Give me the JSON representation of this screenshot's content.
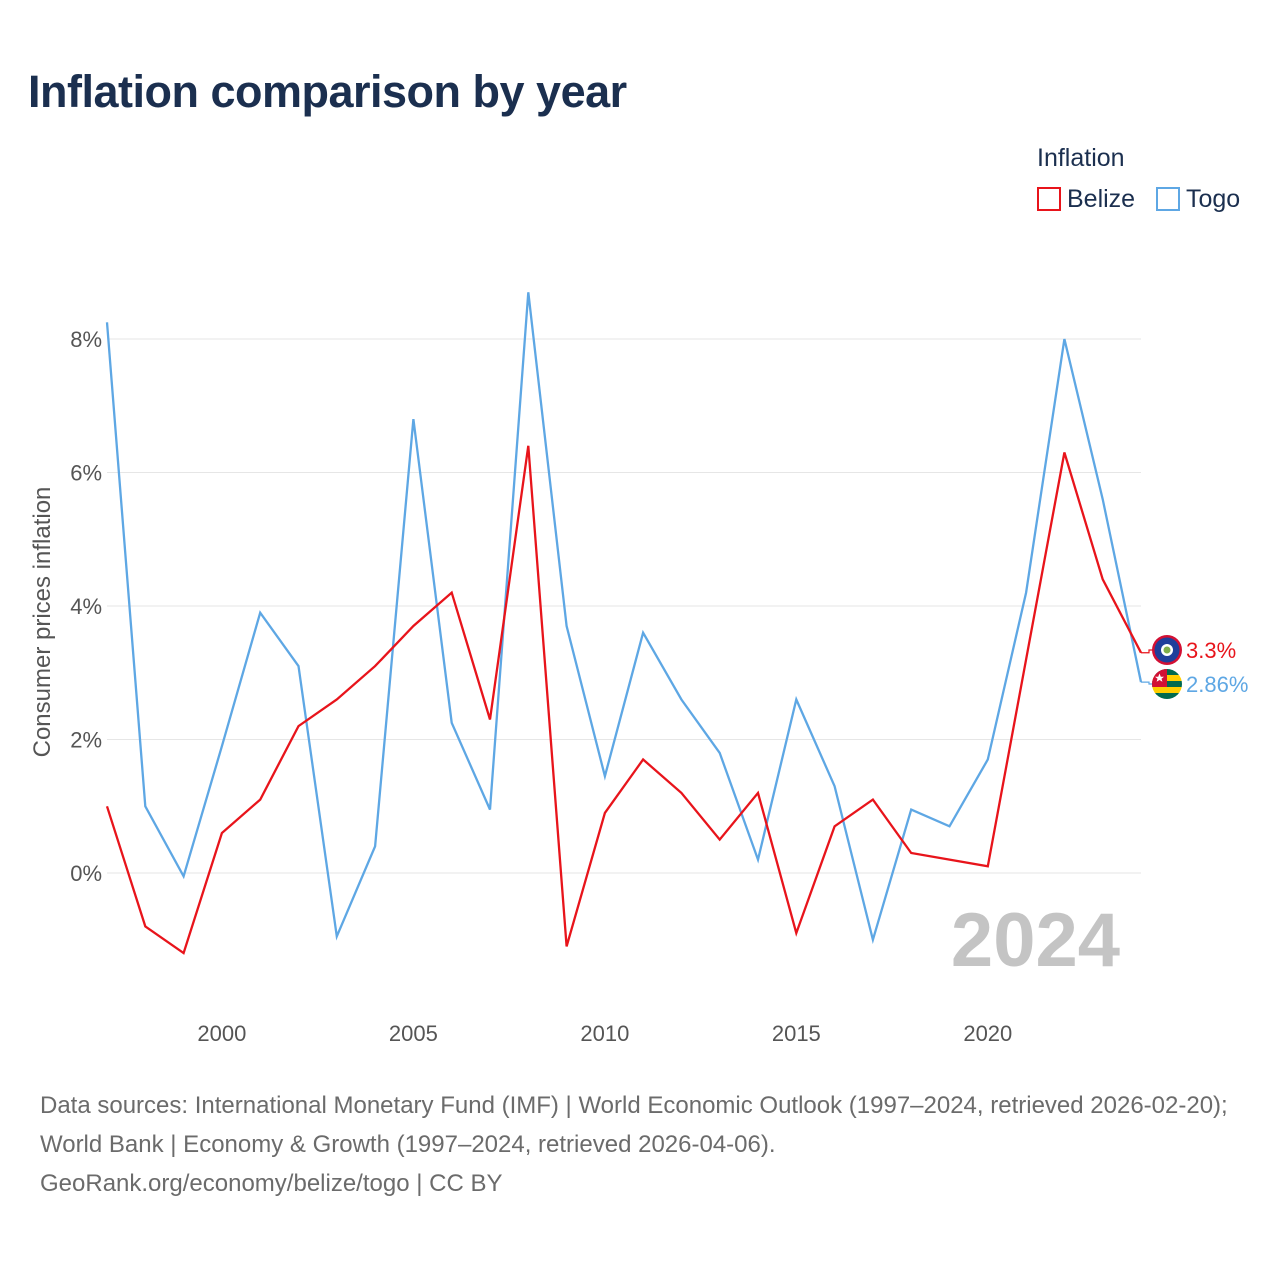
{
  "title": "Inflation comparison by year",
  "legend": {
    "title": "Inflation",
    "items": [
      {
        "label": "Belize",
        "color": "#e8141b"
      },
      {
        "label": "Togo",
        "color": "#5ea7e4"
      }
    ]
  },
  "chart_data": {
    "type": "line",
    "title": "Inflation comparison by year",
    "xlabel": "",
    "ylabel": "Consumer prices inflation",
    "x": [
      1997,
      1998,
      1999,
      2000,
      2001,
      2002,
      2003,
      2004,
      2005,
      2006,
      2007,
      2008,
      2009,
      2010,
      2011,
      2012,
      2013,
      2014,
      2015,
      2016,
      2017,
      2018,
      2019,
      2020,
      2021,
      2022,
      2023,
      2024
    ],
    "xlim": [
      1997,
      2024
    ],
    "ylim": [
      -2,
      9
    ],
    "x_ticks": [
      2000,
      2005,
      2010,
      2015,
      2020
    ],
    "y_ticks": [
      0,
      2,
      4,
      6,
      8
    ],
    "y_tick_labels": [
      "0%",
      "2%",
      "4%",
      "6%",
      "8%"
    ],
    "x_tick_labels": [
      "2000",
      "2005",
      "2010",
      "2015",
      "2020"
    ],
    "grid": true,
    "legend_position": "top-right",
    "year_watermark": "2024",
    "series": [
      {
        "name": "Belize",
        "color": "#e8141b",
        "end_label": "3.3%",
        "values": [
          1.0,
          -0.8,
          -1.2,
          0.6,
          1.1,
          2.2,
          2.6,
          3.1,
          3.7,
          4.2,
          2.3,
          6.4,
          -1.1,
          0.9,
          1.7,
          1.2,
          0.5,
          1.2,
          -0.9,
          0.7,
          1.1,
          0.3,
          0.2,
          0.1,
          3.2,
          6.3,
          4.4,
          3.3
        ]
      },
      {
        "name": "Togo",
        "color": "#5ea7e4",
        "end_label": "2.86%",
        "values": [
          8.25,
          1.0,
          -0.05,
          1.9,
          3.9,
          3.1,
          -0.95,
          0.4,
          6.8,
          2.25,
          0.95,
          8.7,
          3.7,
          1.45,
          3.6,
          2.6,
          1.8,
          0.2,
          2.6,
          1.3,
          -1.0,
          0.95,
          0.7,
          1.7,
          4.2,
          8.0,
          5.6,
          2.86
        ]
      }
    ]
  },
  "footer": {
    "sources": "Data sources: International Monetary Fund (IMF) | World Economic Outlook (1997–2024, retrieved 2026-02-20); World Bank | Economy & Growth (1997–2024, retrieved 2026-04-06).",
    "attribution": "GeoRank.org/economy/belize/togo | CC BY"
  }
}
